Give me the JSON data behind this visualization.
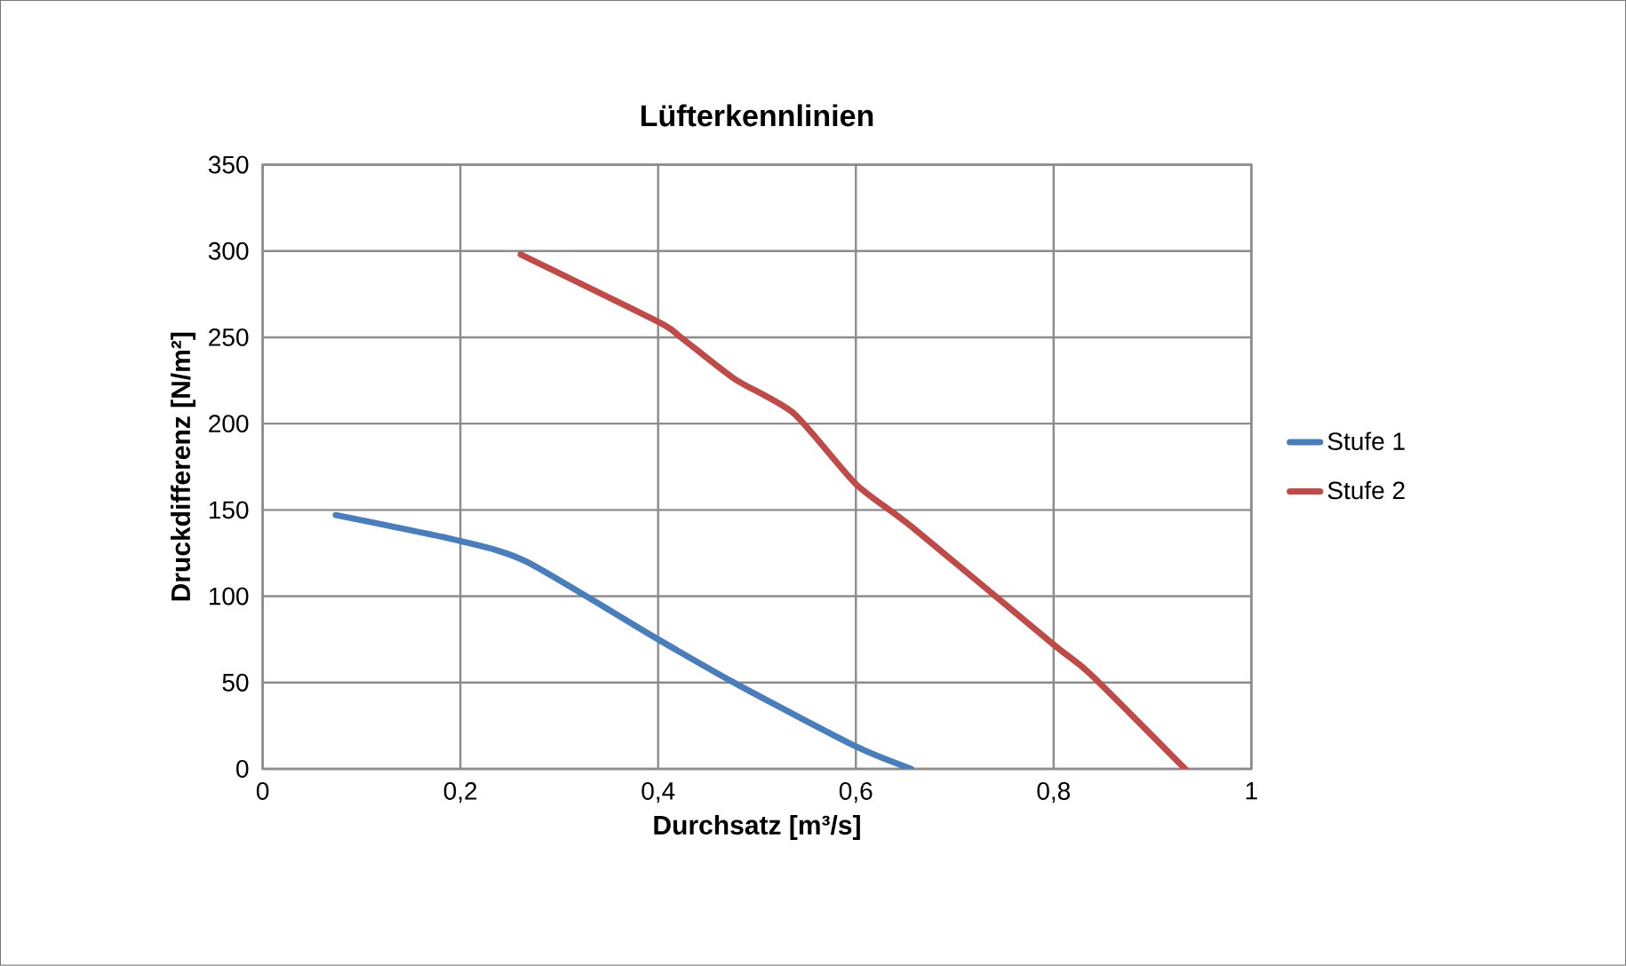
{
  "chart_data": {
    "type": "line",
    "title": "Lüfterkennlinien",
    "xlabel": "Durchsatz [m³/s]",
    "ylabel": "Druckdifferenz [N/m²]",
    "xlim": [
      0,
      1
    ],
    "xticks": [
      0,
      {
        "value": 0.2,
        "label": "0,2"
      },
      {
        "value": 0.4,
        "label": "0,4"
      },
      {
        "value": 0.6,
        "label": "0,6"
      },
      {
        "value": 0.8,
        "label": "0,8"
      },
      1
    ],
    "ylim": [
      0,
      350
    ],
    "yticks": [
      0,
      50,
      100,
      150,
      200,
      250,
      300,
      350
    ],
    "grid": true,
    "legend": "right",
    "marker": "none",
    "series": [
      {
        "name": "Stufe 1",
        "color": "#4a7ebb",
        "x": [
          0.074,
          0.2,
          0.267,
          0.4,
          0.483,
          0.6,
          0.656
        ],
        "values": [
          147,
          132,
          120,
          75,
          48,
          13,
          0
        ]
      },
      {
        "name": "Stufe 2",
        "color": "#be4b48",
        "x": [
          0.261,
          0.4,
          0.423,
          0.477,
          0.537,
          0.6,
          0.657,
          0.8,
          0.837,
          0.933
        ],
        "values": [
          298,
          259,
          250,
          226,
          206,
          165,
          140,
          72,
          55,
          0
        ]
      }
    ]
  }
}
